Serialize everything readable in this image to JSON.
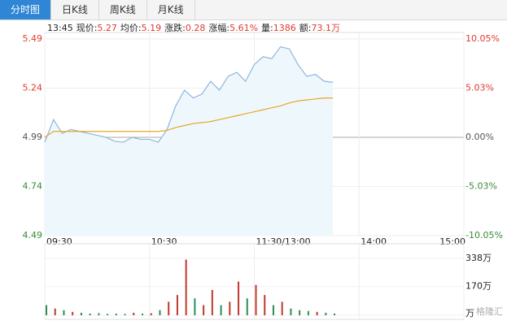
{
  "tabs": [
    "分时图",
    "日K线",
    "周K线",
    "月K线"
  ],
  "info": {
    "time": "13:45",
    "items": [
      {
        "label": "现价:",
        "value": "5.27"
      },
      {
        "label": "均价:",
        "value": "5.19"
      },
      {
        "label": "涨跌:",
        "value": "0.28"
      },
      {
        "label": "涨幅:",
        "value": "5.61%"
      },
      {
        "label": "量:",
        "value": "1386"
      },
      {
        "label": "额:",
        "value": "73.1万"
      }
    ]
  },
  "watermark": "格隆汇",
  "chart_data": [
    {
      "type": "line",
      "prev_close": 4.99,
      "up_color": "#e03a2f",
      "down_color": "#3a8a3a",
      "flat_color": "#555555",
      "x": [
        0,
        5,
        10,
        15,
        20,
        25,
        30,
        35,
        40,
        45,
        50,
        55,
        60,
        65,
        70,
        75,
        80,
        85,
        90,
        95,
        100,
        105,
        110,
        115,
        120,
        125,
        130,
        135,
        140,
        145,
        150,
        155,
        160,
        165
      ],
      "series": [
        {
          "name": "价格",
          "color": "#8fb4dd",
          "area": "#eef8fc",
          "values": [
            4.965,
            5.08,
            5.01,
            5.03,
            5.02,
            5.01,
            5.0,
            4.99,
            4.97,
            4.965,
            4.99,
            4.98,
            4.98,
            4.965,
            5.03,
            5.15,
            5.23,
            5.19,
            5.21,
            5.275,
            5.23,
            5.3,
            5.32,
            5.275,
            5.36,
            5.4,
            5.39,
            5.45,
            5.44,
            5.36,
            5.3,
            5.31,
            5.275,
            5.27
          ]
        },
        {
          "name": "均价",
          "color": "#e8a526",
          "values": [
            4.99,
            5.02,
            5.02,
            5.02,
            5.02,
            5.02,
            5.02,
            5.02,
            5.02,
            5.02,
            5.02,
            5.02,
            5.02,
            5.02,
            5.025,
            5.04,
            5.05,
            5.06,
            5.065,
            5.07,
            5.08,
            5.09,
            5.1,
            5.11,
            5.12,
            5.13,
            5.14,
            5.15,
            5.165,
            5.175,
            5.18,
            5.185,
            5.19,
            5.19
          ]
        }
      ],
      "xlim": [
        0,
        240
      ],
      "xticks": [
        {
          "value": 0,
          "label": "09:30"
        },
        {
          "value": 60,
          "label": "10:30"
        },
        {
          "value": 120,
          "label": "11:30/13:00"
        },
        {
          "value": 180,
          "label": "14:00"
        },
        {
          "value": 240,
          "label": "15:00"
        }
      ],
      "ylim": [
        4.49,
        5.49
      ],
      "yticks": [
        4.49,
        4.74,
        4.99,
        5.24,
        5.49
      ],
      "y2lim": [
        -10.05,
        10.05
      ],
      "y2ticks": [
        {
          "value": -10.05,
          "label": "-10.05%"
        },
        {
          "value": -5.03,
          "label": "-5.03%"
        },
        {
          "value": 0,
          "label": "0.00%"
        },
        {
          "value": 5.03,
          "label": "5.03%"
        },
        {
          "value": 10.05,
          "label": "10.05%"
        }
      ],
      "grid": true
    },
    {
      "type": "bar",
      "up_color": "#c0392b",
      "down_color": "#2e8b57",
      "x": [
        0,
        5,
        10,
        15,
        20,
        25,
        30,
        35,
        40,
        45,
        50,
        55,
        60,
        65,
        70,
        75,
        80,
        85,
        90,
        95,
        100,
        105,
        110,
        115,
        120,
        125,
        130,
        135,
        140,
        145,
        150,
        155,
        160,
        165
      ],
      "values": [
        60,
        40,
        30,
        20,
        15,
        10,
        12,
        8,
        10,
        8,
        15,
        10,
        12,
        30,
        80,
        120,
        330,
        100,
        60,
        150,
        60,
        80,
        200,
        100,
        180,
        120,
        60,
        80,
        40,
        30,
        25,
        20,
        15,
        10
      ],
      "xlim": [
        0,
        240
      ],
      "ylim": [
        0,
        400
      ],
      "yticks": [
        {
          "value": 0,
          "label": "万"
        },
        {
          "value": 170,
          "label": "170万"
        },
        {
          "value": 338,
          "label": "338万"
        }
      ]
    }
  ]
}
